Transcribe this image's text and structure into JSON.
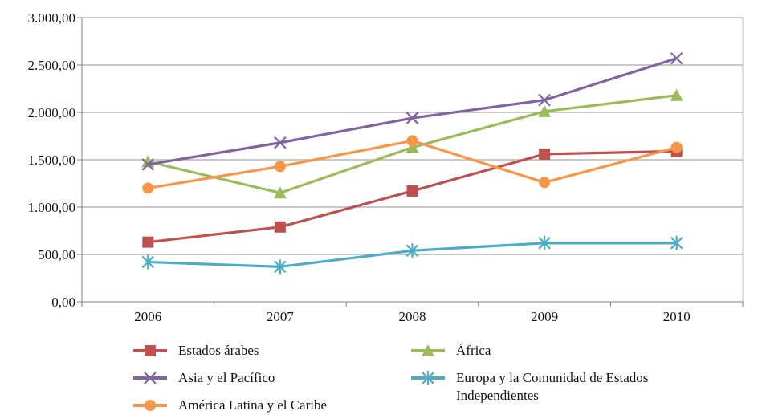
{
  "chart_data": {
    "type": "line",
    "title": "",
    "xlabel": "",
    "ylabel": "",
    "x": [
      "2006",
      "2007",
      "2008",
      "2009",
      "2010"
    ],
    "ylim": [
      0,
      3000
    ],
    "y_ticks": [
      {
        "value": 0,
        "label": "0,00"
      },
      {
        "value": 500,
        "label": "500,00"
      },
      {
        "value": 1000,
        "label": "1.000,00"
      },
      {
        "value": 1500,
        "label": "1.500,00"
      },
      {
        "value": 2000,
        "label": "2.000,00"
      },
      {
        "value": 2500,
        "label": "2.500,00"
      },
      {
        "value": 3000,
        "label": "3.000,00"
      }
    ],
    "grid": true,
    "legend_position": "bottom",
    "series": [
      {
        "name": "Estados árabes",
        "color": "#c0504d",
        "marker": "square",
        "values": [
          630,
          790,
          1170,
          1560,
          1590
        ]
      },
      {
        "name": "África",
        "color": "#9bbb59",
        "marker": "triangle",
        "values": [
          1480,
          1150,
          1630,
          2010,
          2180
        ]
      },
      {
        "name": "Asia y el Pacífico",
        "color": "#8064a2",
        "marker": "x",
        "values": [
          1450,
          1680,
          1940,
          2130,
          2570
        ]
      },
      {
        "name": "Europa y la Comunidad de Estados Independientes",
        "color": "#4bacc6",
        "marker": "star",
        "values": [
          420,
          370,
          540,
          620,
          620
        ]
      },
      {
        "name": "América Latina y el Caribe",
        "color": "#f79646",
        "marker": "circle",
        "values": [
          1200,
          1430,
          1700,
          1260,
          1630
        ]
      }
    ]
  }
}
